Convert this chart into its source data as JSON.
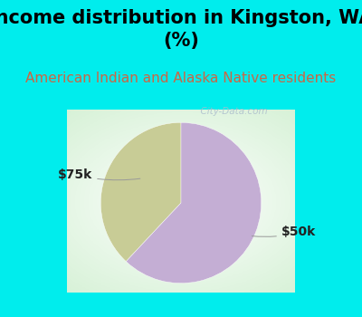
{
  "title": "Income distribution in Kingston, WA\n(%)",
  "subtitle": "American Indian and Alaska Native residents",
  "slices": [
    {
      "label": "$75k",
      "value": 38,
      "color": "#c8cc96"
    },
    {
      "label": "$50k",
      "value": 62,
      "color": "#c4aed4"
    }
  ],
  "bg_color": "#00EDED",
  "title_fontsize": 15,
  "subtitle_fontsize": 11,
  "subtitle_color": "#cc6644",
  "label_fontsize": 10,
  "startangle": 90,
  "watermark": "  City-Data.com",
  "watermark_color": "#aabbcc",
  "label_color": "#222222"
}
